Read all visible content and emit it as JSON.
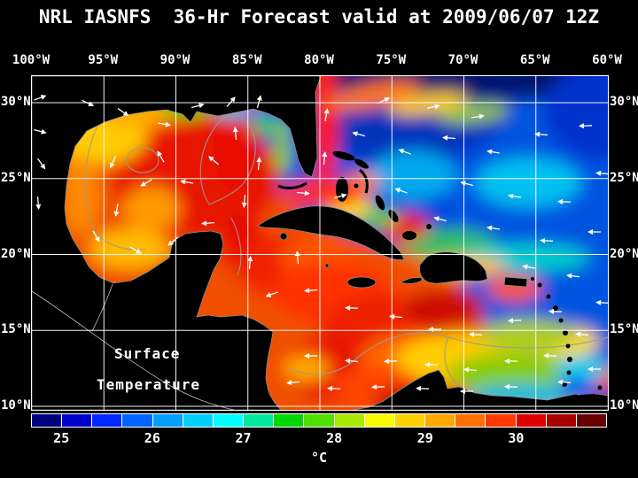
{
  "title": "NRL IASNFS  36-Hr Forecast valid at 2009/06/07 12Z",
  "map": {
    "lon_labels": [
      "100°W",
      "95°W",
      "90°W",
      "85°W",
      "80°W",
      "75°W",
      "70°W",
      "65°W",
      "60°W"
    ],
    "lat_labels": [
      "30°N",
      "25°N",
      "20°N",
      "15°N",
      "10°N"
    ],
    "overlay_label": {
      "line1": "Surface",
      "line2": "Temperature"
    }
  },
  "colorbar": {
    "unit": "°C",
    "tick_labels": [
      "25",
      "26",
      "27",
      "28",
      "29",
      "30"
    ],
    "cell_colors": [
      "#000080",
      "#0000cc",
      "#0028ff",
      "#0064ff",
      "#00a0ff",
      "#00d0ff",
      "#00ffff",
      "#00e8a0",
      "#00d800",
      "#50e000",
      "#a8e800",
      "#f8f800",
      "#ffd000",
      "#ffa800",
      "#ff7000",
      "#ff3800",
      "#e00000",
      "#a80000",
      "#680000"
    ]
  },
  "chart_data": {
    "type": "heatmap",
    "title": "NRL IASNFS  36-Hr Forecast valid at 2009/06/07 12Z",
    "variable_label": "Surface Temperature",
    "unit": "°C",
    "x_axis": {
      "label": "longitude",
      "tick_labels": [
        "100°W",
        "95°W",
        "90°W",
        "85°W",
        "80°W",
        "75°W",
        "70°W",
        "65°W",
        "60°W"
      ]
    },
    "y_axis": {
      "label": "latitude",
      "tick_labels": [
        "30°N",
        "25°N",
        "20°N",
        "15°N",
        "10°N"
      ]
    },
    "colorbar": {
      "tick_values": [
        25,
        26,
        27,
        28,
        29,
        30
      ],
      "cells_per_degree": 3,
      "range": [
        24.67,
        31
      ],
      "colors": [
        "#000080",
        "#0000cc",
        "#0028ff",
        "#0064ff",
        "#00a0ff",
        "#00d0ff",
        "#00ffff",
        "#00e8a0",
        "#00d800",
        "#50e000",
        "#a8e800",
        "#f8f800",
        "#ffd000",
        "#ffa800",
        "#ff7000",
        "#ff3800",
        "#e00000",
        "#a80000",
        "#680000"
      ]
    },
    "legend_position": "bottom",
    "grid": true
  }
}
